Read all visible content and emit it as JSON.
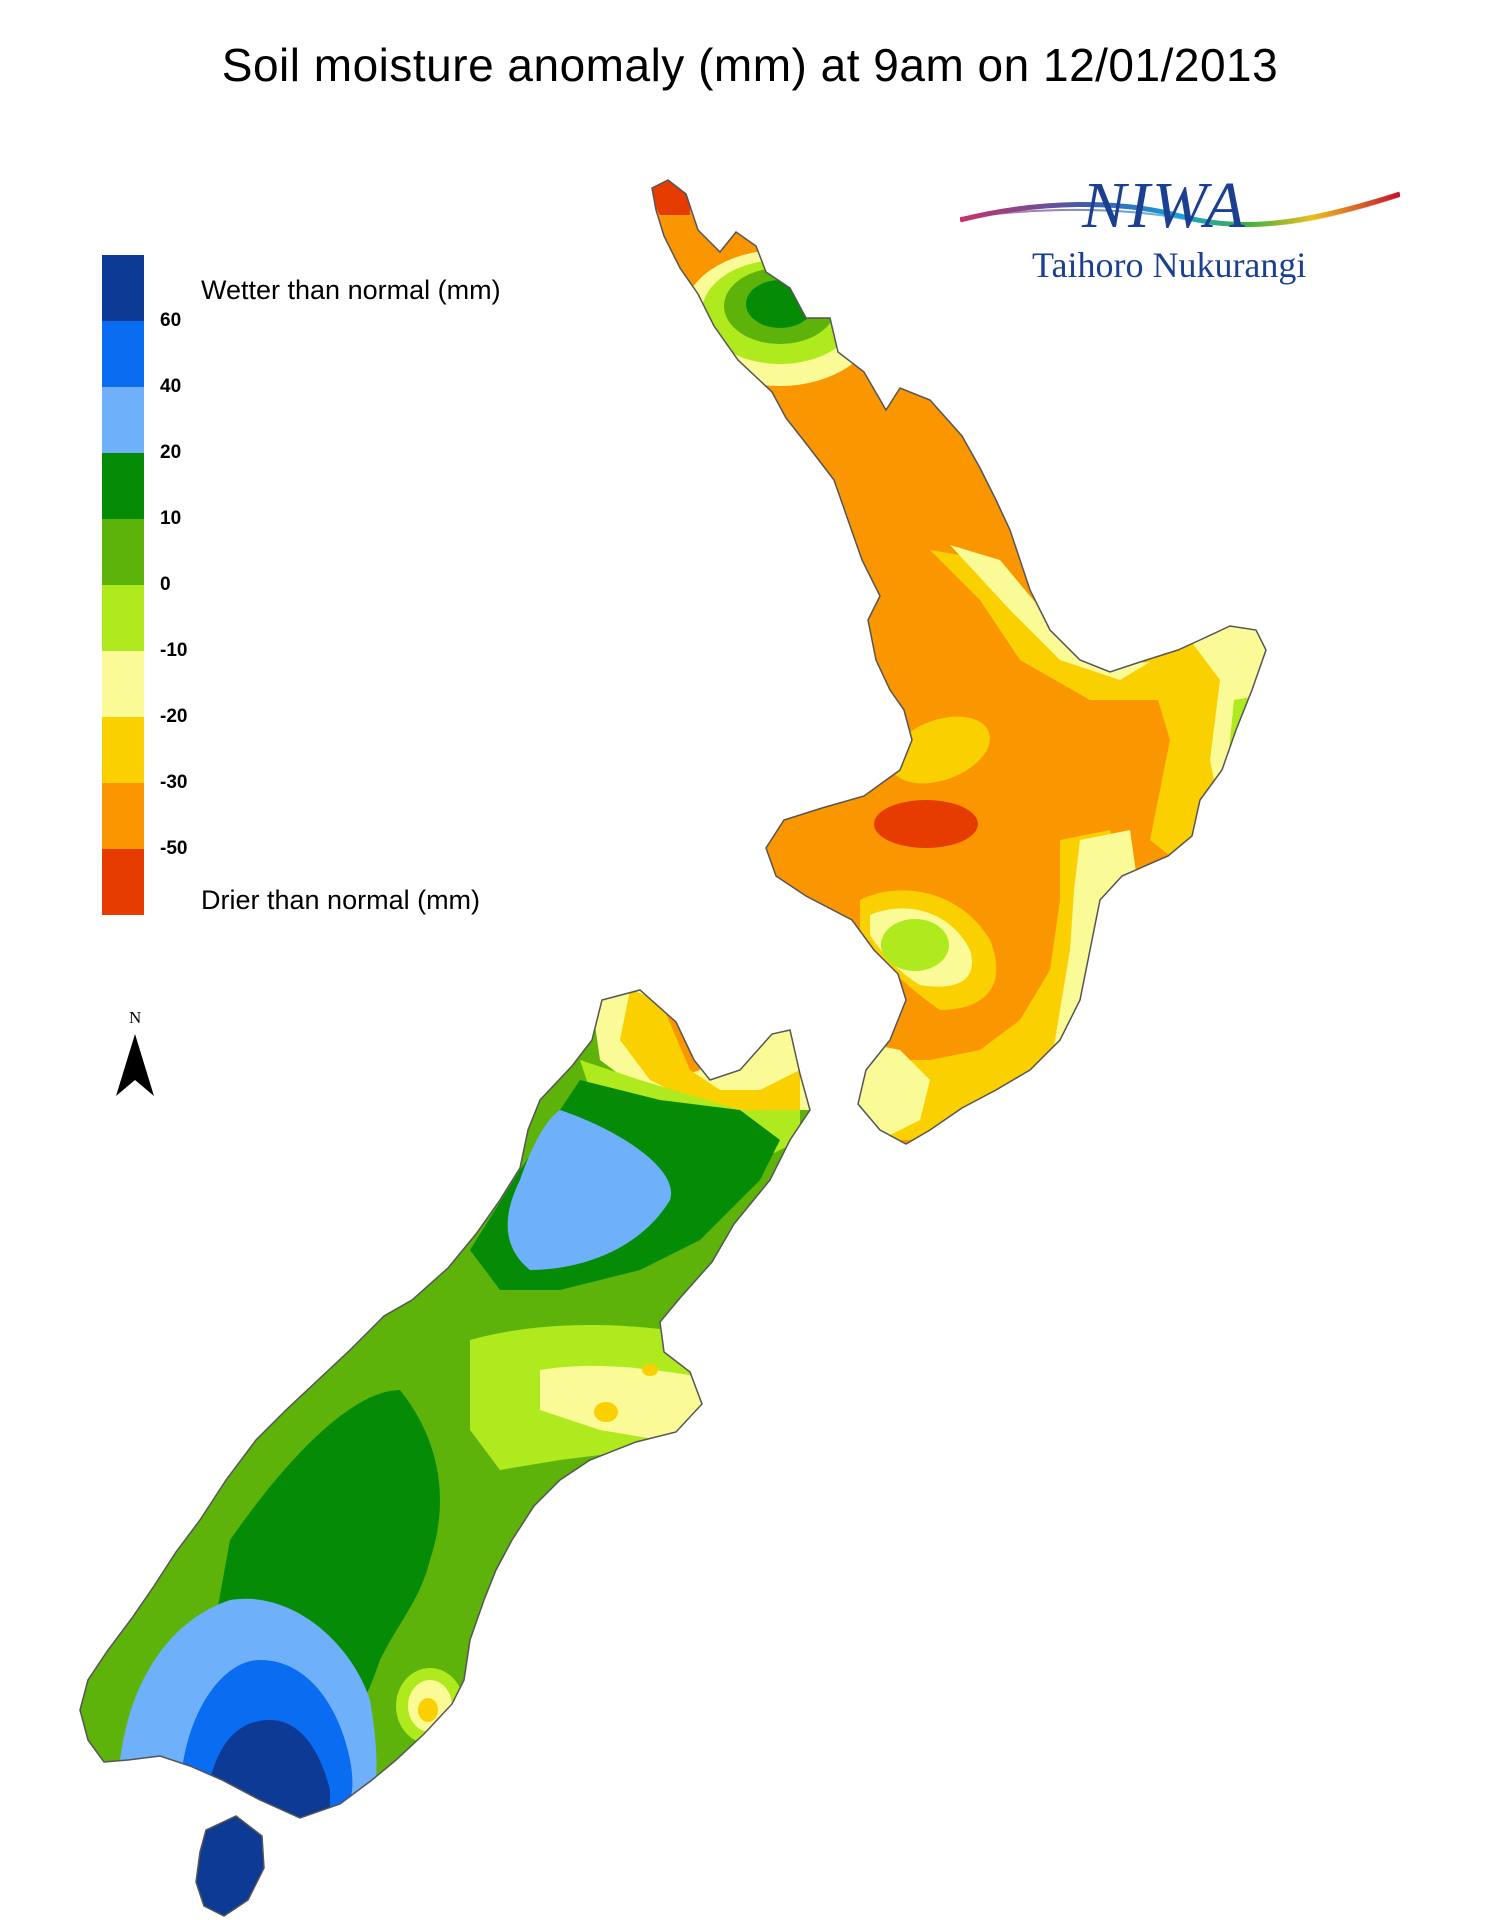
{
  "title": "Soil moisture anomaly (mm) at 9am on 12/01/2013",
  "logo": {
    "name": "NIWA",
    "subtitle": "Taihoro Nukurangi"
  },
  "north_label": "N",
  "legend": {
    "wetter_label": "Wetter than normal (mm)",
    "drier_label": "Drier than normal (mm)",
    "ticks": [
      "60",
      "40",
      "20",
      "10",
      "0",
      "-10",
      "-20",
      "-30",
      "-50"
    ],
    "colors": [
      "#0d3a94",
      "#0a6cf0",
      "#6eb0f9",
      "#058b05",
      "#5db309",
      "#aeea1e",
      "#fafa96",
      "#fbd000",
      "#fa9600",
      "#e63c00"
    ]
  },
  "icons": {
    "north": "north-arrow-icon",
    "logo": "niwa-wave-icon"
  }
}
